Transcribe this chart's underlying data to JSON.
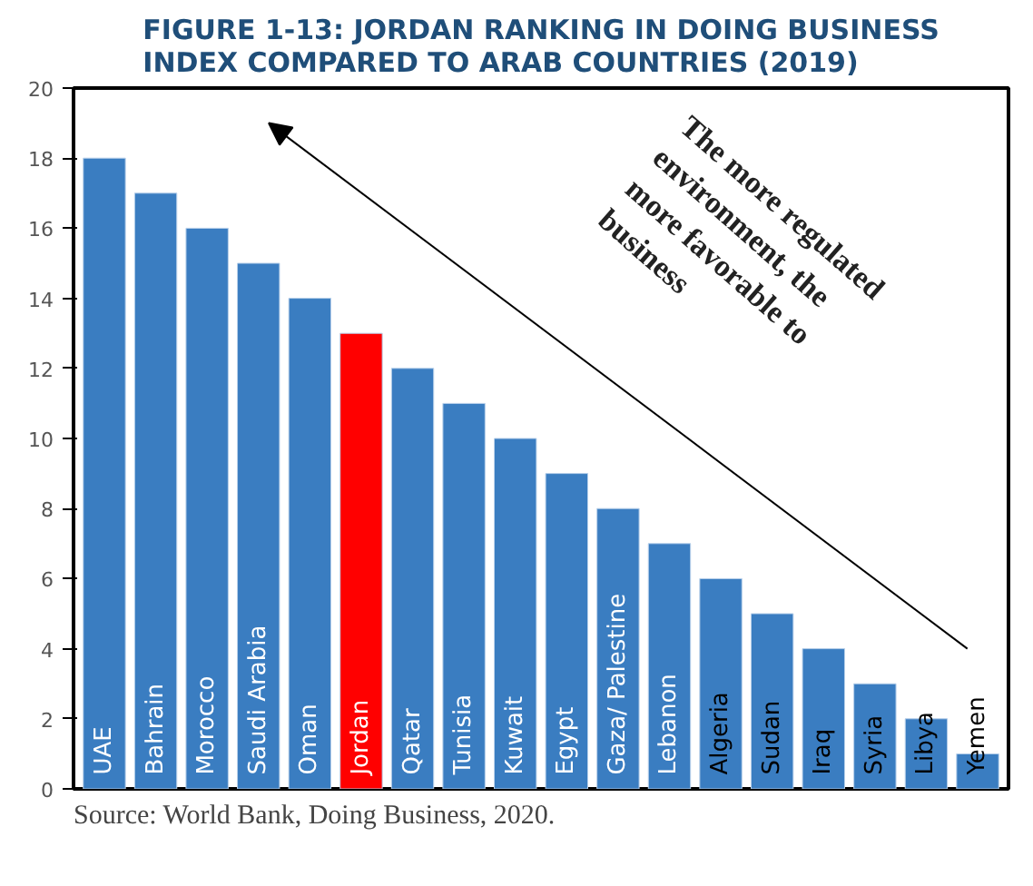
{
  "chart_data": {
    "type": "bar",
    "title": "FIGURE 1-13: JORDAN RANKING IN DOING BUSINESS INDEX COMPARED TO ARAB COUNTRIES (2019)",
    "categories": [
      "UAE",
      "Bahrain",
      "Morocco",
      "Saudi Arabia",
      "Oman",
      "Jordan",
      "Qatar",
      "Tunisia",
      "Kuwait",
      "Egypt",
      "Gaza/ Palestine",
      "Lebanon",
      "Algeria",
      "Sudan",
      "Iraq",
      "Syria",
      "Libya",
      "Yemen"
    ],
    "values": [
      18,
      17,
      16,
      15,
      14,
      13,
      12,
      11,
      10,
      9,
      8,
      7,
      6,
      5,
      4,
      3,
      2,
      1
    ],
    "colors": [
      "#3a7dc1",
      "#3a7dc1",
      "#3a7dc1",
      "#3a7dc1",
      "#3a7dc1",
      "#ff0000",
      "#3a7dc1",
      "#3a7dc1",
      "#3a7dc1",
      "#3a7dc1",
      "#3a7dc1",
      "#3a7dc1",
      "#3a7dc1",
      "#3a7dc1",
      "#3a7dc1",
      "#3a7dc1",
      "#3a7dc1",
      "#3a7dc1"
    ],
    "ylim": [
      0,
      20
    ],
    "yticks": [
      0,
      2,
      4,
      6,
      8,
      10,
      12,
      14,
      16,
      18,
      20
    ],
    "grid": false,
    "annotations": [
      "The more regulated environment, the more favorable to business",
      "Source: World Bank, Doing Business, 2020."
    ]
  }
}
